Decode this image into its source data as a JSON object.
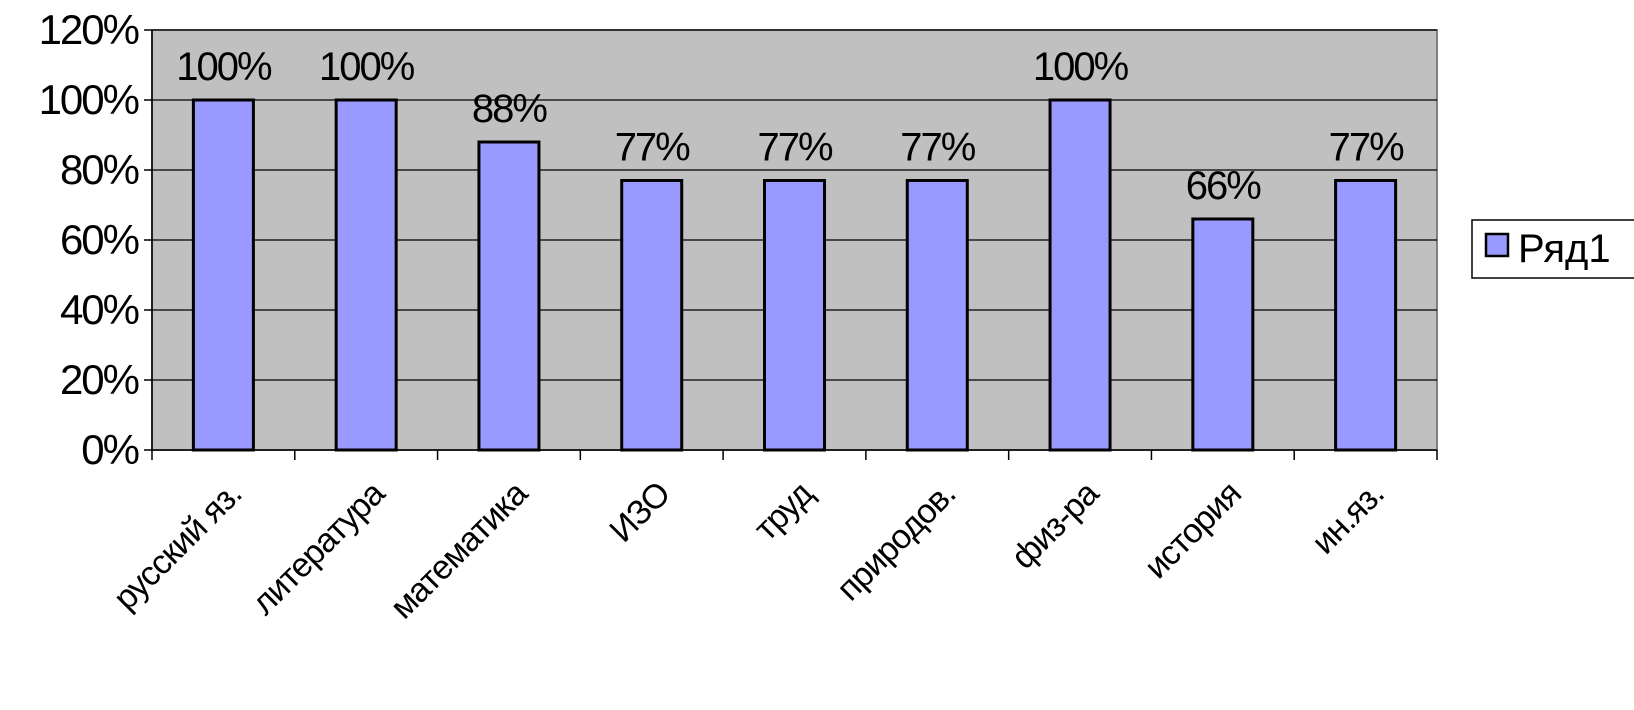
{
  "chart_data": {
    "type": "bar",
    "categories": [
      "русский яз.",
      "литература",
      "математика",
      "ИЗО",
      "труд",
      "природов.",
      "физ-ра",
      "история",
      "ин.яз."
    ],
    "series": [
      {
        "name": "Ряд1",
        "values": [
          100,
          100,
          88,
          77,
          77,
          77,
          100,
          66,
          77
        ],
        "data_labels": [
          "100%",
          "100%",
          "88%",
          "77%",
          "77%",
          "77%",
          "100%",
          "66%",
          "77%"
        ]
      }
    ],
    "y_ticks": [
      "0%",
      "20%",
      "40%",
      "60%",
      "80%",
      "100%",
      "120%"
    ],
    "ylim": [
      0,
      120
    ],
    "grid": true,
    "legend_position": "right",
    "colors": {
      "plot_background": "#c0c0c0",
      "bar_fill": "#9999ff",
      "bar_stroke": "#000000",
      "gridline": "#000000",
      "axis": "#000000"
    }
  }
}
